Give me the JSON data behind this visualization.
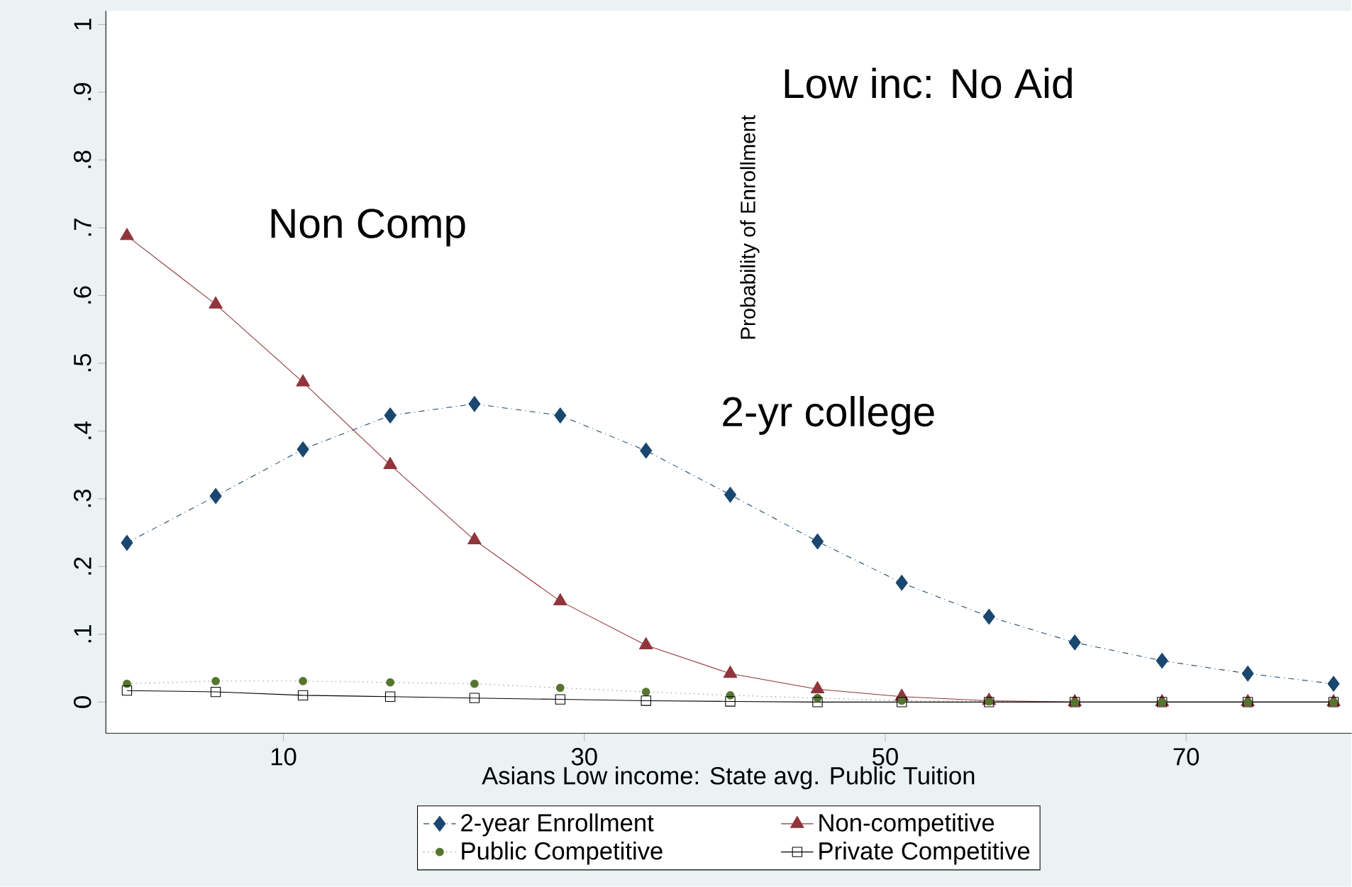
{
  "chart_data": {
    "type": "line",
    "xlabel": "Asians Low income: State avg. Public Tuition",
    "ylabel": "Probability of Enrollment",
    "annotations": [
      "Low inc: No Aid",
      "Non Comp",
      "2-yr college"
    ],
    "x": [
      -0.4,
      5.5,
      11.3,
      17.1,
      22.7,
      28.4,
      34.1,
      39.7,
      45.5,
      51.1,
      56.9,
      62.6,
      68.4,
      74.1,
      79.8
    ],
    "series": [
      {
        "name": "2-year Enrollment",
        "color": "#1a476f",
        "marker": "diamond",
        "line_style": "dashed",
        "values": [
          0.235,
          0.304,
          0.373,
          0.423,
          0.44,
          0.423,
          0.371,
          0.306,
          0.237,
          0.176,
          0.126,
          0.088,
          0.061,
          0.042,
          0.027
        ]
      },
      {
        "name": "Non-competitive",
        "color": "#90353b",
        "marker": "triangle",
        "line_style": "solid",
        "values": [
          0.688,
          0.587,
          0.472,
          0.35,
          0.239,
          0.149,
          0.084,
          0.042,
          0.019,
          0.008,
          0.002,
          0,
          0,
          0,
          0
        ]
      },
      {
        "name": "Public Competitive",
        "color": "#55752f",
        "marker": "circle",
        "line_style": "dotted",
        "values": [
          0.027,
          0.031,
          0.031,
          0.029,
          0.027,
          0.021,
          0.015,
          0.01,
          0.006,
          0.002,
          0.001,
          0,
          0,
          0,
          0
        ]
      },
      {
        "name": "Private Competitive",
        "color": "#000000",
        "marker": "square",
        "line_style": "solid",
        "values": [
          0.017,
          0.015,
          0.01,
          0.008,
          0.006,
          0.004,
          0.002,
          0.001,
          0,
          0,
          0,
          0,
          0,
          0,
          0
        ]
      }
    ],
    "xlim": [
      -1.8,
      81
    ],
    "ylim": [
      -0.046,
      1.02
    ],
    "xticks": [
      10,
      30,
      50,
      70
    ],
    "yticks": [
      0,
      {
        "value": 0.1,
        "label": ".1"
      },
      {
        "value": 0.2,
        "label": ".2"
      },
      {
        "value": 0.3,
        "label": ".3"
      },
      {
        "value": 0.4,
        "label": ".4"
      },
      {
        "value": 0.5,
        "label": ".5"
      },
      {
        "value": 0.6,
        "label": ".6"
      },
      {
        "value": 0.7,
        "label": ".7"
      },
      {
        "value": 0.8,
        "label": ".8"
      },
      {
        "value": 0.9,
        "label": ".9"
      },
      1
    ],
    "grid": false,
    "legend": "bottom"
  }
}
